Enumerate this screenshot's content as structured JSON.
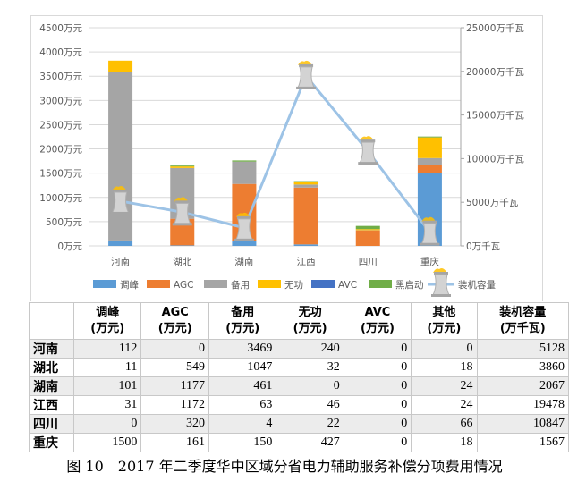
{
  "chart_data": {
    "type": "bar",
    "stacked": true,
    "categories": [
      "河南",
      "湖北",
      "湖南",
      "江西",
      "四川",
      "重庆"
    ],
    "series": [
      {
        "name": "调峰",
        "color": "#5b9bd5",
        "values": [
          112,
          11,
          101,
          31,
          0,
          1500
        ]
      },
      {
        "name": "AGC",
        "color": "#ed7d31",
        "values": [
          0,
          549,
          1177,
          1172,
          320,
          161
        ]
      },
      {
        "name": "备用",
        "color": "#a5a5a5",
        "values": [
          3469,
          1047,
          461,
          63,
          4,
          150
        ]
      },
      {
        "name": "无功",
        "color": "#ffc000",
        "values": [
          240,
          32,
          0,
          46,
          22,
          427
        ]
      },
      {
        "name": "AVC",
        "color": "#4472c4",
        "values": [
          0,
          0,
          0,
          0,
          0,
          0
        ]
      },
      {
        "name": "黑启动",
        "color": "#70ad47",
        "values": [
          0,
          18,
          24,
          24,
          66,
          18
        ]
      }
    ],
    "line_series": {
      "name": "装机容量",
      "color": "#9dc3e6",
      "axis": "right",
      "values": [
        5128,
        3860,
        2067,
        19478,
        10847,
        1567
      ]
    },
    "left_axis": {
      "ylim": [
        0,
        4500
      ],
      "ticks": [
        0,
        500,
        1000,
        1500,
        2000,
        2500,
        3000,
        3500,
        4000,
        4500
      ],
      "unit": "万元"
    },
    "right_axis": {
      "ylim": [
        0,
        25000
      ],
      "ticks": [
        0,
        5000,
        10000,
        15000,
        20000,
        25000
      ],
      "unit": "万千瓦"
    },
    "legend": "bottom",
    "grid": true
  },
  "table": {
    "headers": [
      [
        "",
        ""
      ],
      [
        "调峰",
        "(万元)"
      ],
      [
        "AGC",
        "(万元)"
      ],
      [
        "备用",
        "(万元)"
      ],
      [
        "无功",
        "(万元)"
      ],
      [
        "AVC",
        "(万元)"
      ],
      [
        "其他",
        "(万元)"
      ],
      [
        "装机容量",
        "(万千瓦)"
      ]
    ],
    "rows": [
      [
        "河南",
        "112",
        "0",
        "3469",
        "240",
        "0",
        "0",
        "5128"
      ],
      [
        "湖北",
        "11",
        "549",
        "1047",
        "32",
        "0",
        "18",
        "3860"
      ],
      [
        "湖南",
        "101",
        "1177",
        "461",
        "0",
        "0",
        "24",
        "2067"
      ],
      [
        "江西",
        "31",
        "1172",
        "63",
        "46",
        "0",
        "24",
        "19478"
      ],
      [
        "四川",
        "0",
        "320",
        "4",
        "22",
        "0",
        "66",
        "10847"
      ],
      [
        "重庆",
        "1500",
        "161",
        "150",
        "427",
        "0",
        "18",
        "1567"
      ]
    ]
  },
  "caption": "图 10　2017 年二季度华中区域分省电力辅助服务补偿分项费用情况"
}
